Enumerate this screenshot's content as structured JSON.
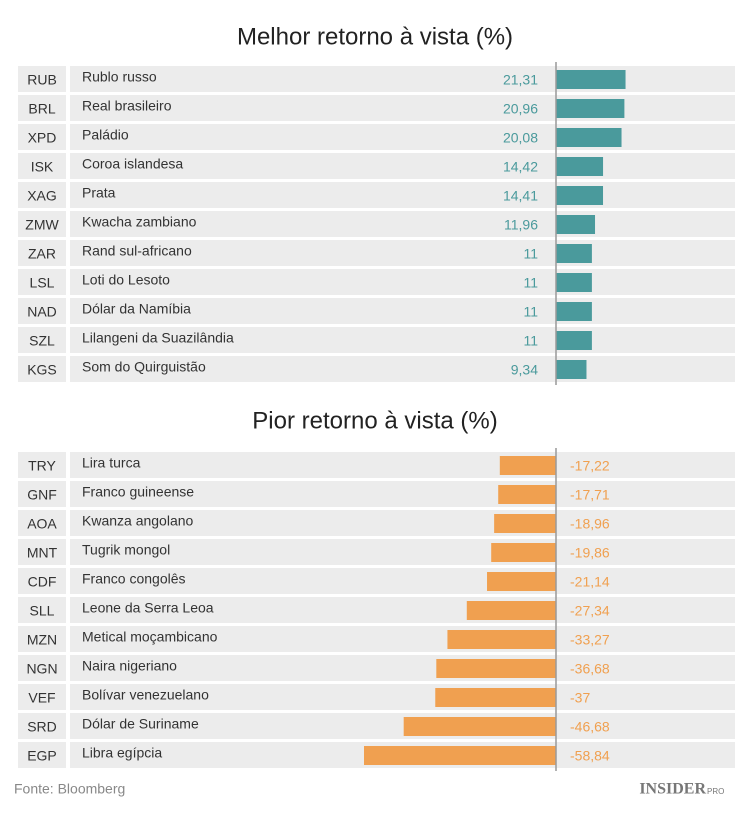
{
  "chart_data": [
    {
      "type": "bar",
      "orientation": "horizontal",
      "title": "Melhor retorno à vista (%)",
      "categories": [
        "RUB",
        "BRL",
        "XPD",
        "ISK",
        "XAG",
        "ZMW",
        "ZAR",
        "LSL",
        "NAD",
        "SZL",
        "KGS"
      ],
      "category_names": [
        "Rublo russo",
        "Real brasileiro",
        "Paládio",
        "Coroa islandesa",
        "Prata",
        "Kwacha zambiano",
        "Rand sul-africano",
        "Loti do Lesoto",
        "Dólar da Namíbia",
        "Lilangeni da Suazilândia",
        "Som do Quirguistão"
      ],
      "values": [
        21.31,
        20.96,
        20.08,
        14.42,
        14.41,
        11.96,
        11,
        11,
        11,
        11,
        9.34
      ],
      "value_labels": [
        "21,31",
        "20,96",
        "20,08",
        "14,42",
        "14,41",
        "11,96",
        "11",
        "11",
        "11",
        "11",
        "9,34"
      ],
      "color": "#4a9a9c"
    },
    {
      "type": "bar",
      "orientation": "horizontal",
      "title": "Pior retorno à vista (%)",
      "categories": [
        "TRY",
        "GNF",
        "AOA",
        "MNT",
        "CDF",
        "SLL",
        "MZN",
        "NGN",
        "VEF",
        "SRD",
        "EGP"
      ],
      "category_names": [
        "Lira turca",
        "Franco guineense",
        "Kwanza angolano",
        "Tugrik mongol",
        "Franco congolês",
        "Leone da Serra Leoa",
        "Metical moçambicano",
        "Naira nigeriano",
        "Bolívar venezuelano",
        "Dólar de Suriname",
        "Libra egípcia"
      ],
      "values": [
        -17.22,
        -17.71,
        -18.96,
        -19.86,
        -21.14,
        -27.34,
        -33.27,
        -36.68,
        -37,
        -46.68,
        -58.84
      ],
      "value_labels": [
        "-17,22",
        "-17,71",
        "-18,96",
        "-19,86",
        "-21,14",
        "-27,34",
        "-33,27",
        "-36,68",
        "-37",
        "-46,68",
        "-58,84"
      ],
      "color": "#f0a050"
    }
  ],
  "source": "Fonte: Bloomberg",
  "logo": {
    "text": "INSIDER",
    "suffix": "PRO"
  }
}
